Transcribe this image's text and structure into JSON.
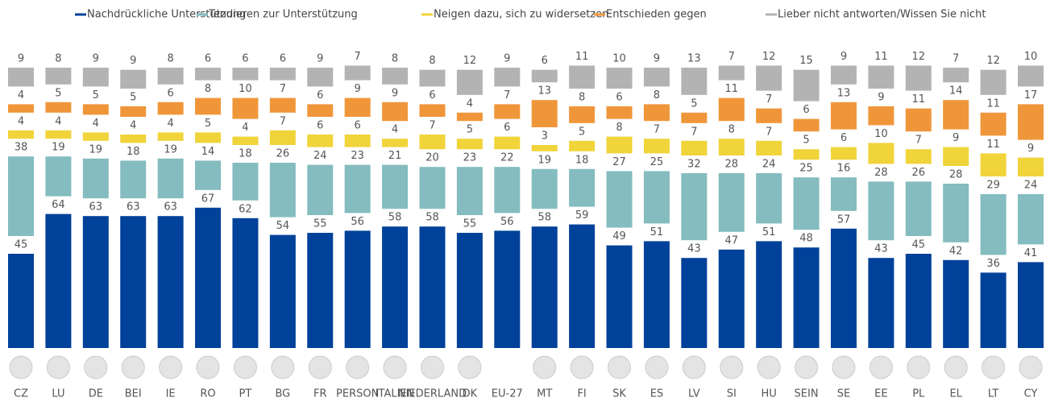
{
  "chart_data": {
    "type": "stacked-bar",
    "categories": [
      "CZ",
      "LU",
      "DE",
      "BEI",
      "IE",
      "RO",
      "PT",
      "BG",
      "FR",
      "PERSON",
      "ITALIEN",
      "NIEDERLAND",
      "DK",
      "EU-27",
      "MT",
      "FI",
      "SK",
      "ES",
      "LV",
      "SI",
      "HU",
      "SEIN",
      "SE",
      "EE",
      "PL",
      "EL",
      "LT",
      "CY"
    ],
    "series": [
      {
        "name": "Nachdrückliche Unterstützung",
        "color": "#00419a",
        "values": [
          45,
          64,
          63,
          63,
          63,
          67,
          62,
          54,
          55,
          56,
          58,
          58,
          55,
          56,
          58,
          59,
          49,
          51,
          43,
          47,
          51,
          48,
          57,
          43,
          45,
          42,
          36,
          41
        ]
      },
      {
        "name": "Tendieren zur Unterstützung",
        "color": "#84bcbf",
        "values": [
          38,
          19,
          19,
          18,
          19,
          14,
          18,
          26,
          24,
          23,
          21,
          20,
          23,
          22,
          19,
          18,
          27,
          25,
          32,
          28,
          24,
          25,
          16,
          28,
          26,
          28,
          29,
          24
        ]
      },
      {
        "name": "Neigen dazu, sich zu widersetzen",
        "color": "#f0d43a",
        "values": [
          4,
          4,
          4,
          4,
          4,
          5,
          4,
          7,
          6,
          6,
          4,
          7,
          5,
          6,
          3,
          5,
          8,
          7,
          7,
          8,
          7,
          5,
          6,
          10,
          7,
          9,
          11,
          9
        ]
      },
      {
        "name": "Entschieden gegen",
        "color": "#f0963a",
        "values": [
          4,
          5,
          5,
          5,
          6,
          8,
          10,
          7,
          6,
          9,
          9,
          6,
          4,
          7,
          13,
          8,
          6,
          8,
          5,
          11,
          7,
          6,
          13,
          9,
          11,
          14,
          11,
          17
        ]
      },
      {
        "name": "Lieber nicht antworten/Wissen Sie nicht",
        "color": "#b3b3b3",
        "values": [
          9,
          8,
          9,
          9,
          8,
          6,
          6,
          6,
          9,
          7,
          8,
          8,
          12,
          9,
          6,
          11,
          10,
          9,
          13,
          7,
          12,
          15,
          9,
          11,
          12,
          7,
          12,
          10
        ]
      }
    ]
  }
}
